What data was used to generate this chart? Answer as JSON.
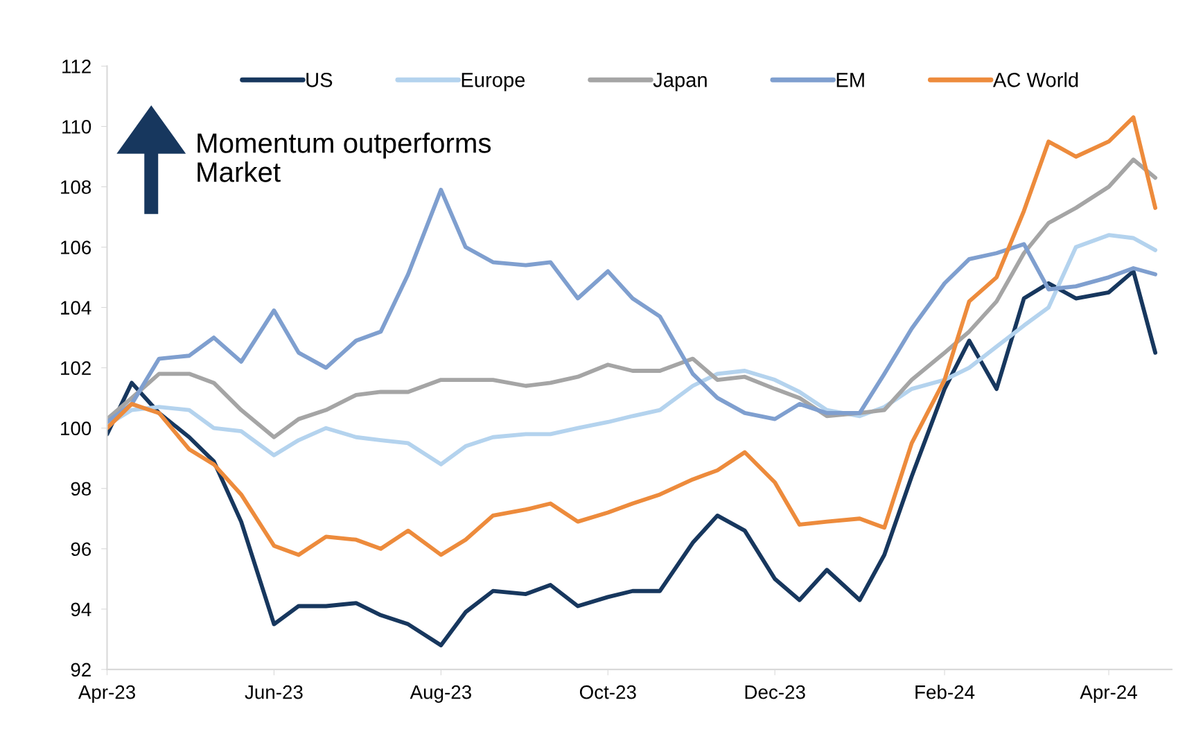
{
  "chart_data": {
    "type": "line",
    "x": [
      "2023-04-01",
      "2023-04-10",
      "2023-04-20",
      "2023-05-01",
      "2023-05-10",
      "2023-05-20",
      "2023-06-01",
      "2023-06-10",
      "2023-06-20",
      "2023-07-01",
      "2023-07-10",
      "2023-07-20",
      "2023-08-01",
      "2023-08-10",
      "2023-08-20",
      "2023-09-01",
      "2023-09-10",
      "2023-09-20",
      "2023-10-01",
      "2023-10-10",
      "2023-10-20",
      "2023-11-01",
      "2023-11-10",
      "2023-11-20",
      "2023-12-01",
      "2023-12-10",
      "2023-12-20",
      "2024-01-01",
      "2024-01-10",
      "2024-01-20",
      "2024-02-01",
      "2024-02-10",
      "2024-02-20",
      "2024-03-01",
      "2024-03-10",
      "2024-03-20",
      "2024-04-01",
      "2024-04-10",
      "2024-04-18"
    ],
    "series": [
      {
        "name": "US",
        "color": "#17375e",
        "values": [
          99.8,
          101.5,
          100.5,
          99.7,
          98.9,
          96.9,
          93.5,
          94.1,
          94.1,
          94.2,
          93.8,
          93.5,
          92.8,
          93.9,
          94.6,
          94.5,
          94.8,
          94.1,
          94.4,
          94.6,
          94.6,
          96.2,
          97.1,
          96.6,
          95.0,
          94.3,
          95.3,
          94.3,
          95.8,
          98.4,
          101.3,
          102.9,
          101.3,
          104.3,
          104.8,
          104.3,
          104.5,
          105.2,
          102.5
        ]
      },
      {
        "name": "Europe",
        "color": "#b4d3ee",
        "values": [
          100.1,
          100.6,
          100.7,
          100.6,
          100.0,
          99.9,
          99.1,
          99.6,
          100.0,
          99.7,
          99.6,
          99.5,
          98.8,
          99.4,
          99.7,
          99.8,
          99.8,
          100.0,
          100.2,
          100.4,
          100.6,
          101.4,
          101.8,
          101.9,
          101.6,
          101.2,
          100.6,
          100.4,
          100.7,
          101.3,
          101.6,
          102.0,
          102.7,
          103.4,
          104.0,
          106.0,
          106.4,
          106.3,
          105.9
        ]
      },
      {
        "name": "Japan",
        "color": "#a5a5a5",
        "values": [
          100.3,
          101.0,
          101.8,
          101.8,
          101.5,
          100.6,
          99.7,
          100.3,
          100.6,
          101.1,
          101.2,
          101.2,
          101.6,
          101.6,
          101.6,
          101.4,
          101.5,
          101.7,
          102.1,
          101.9,
          101.9,
          102.3,
          101.6,
          101.7,
          101.3,
          101.0,
          100.4,
          100.5,
          100.6,
          101.6,
          102.5,
          103.2,
          104.2,
          105.8,
          106.8,
          107.3,
          108.0,
          108.9,
          108.3
        ]
      },
      {
        "name": "EM",
        "color": "#7f9fcf",
        "values": [
          100.2,
          100.8,
          102.3,
          102.4,
          103.0,
          102.2,
          103.9,
          102.5,
          102.0,
          102.9,
          103.2,
          105.1,
          107.9,
          106.0,
          105.5,
          105.4,
          105.5,
          104.3,
          105.2,
          104.3,
          103.7,
          101.8,
          101.0,
          100.5,
          100.3,
          100.8,
          100.5,
          100.5,
          101.8,
          103.3,
          104.8,
          105.6,
          105.8,
          106.1,
          104.6,
          104.7,
          105.0,
          105.3,
          105.1
        ]
      },
      {
        "name": "AC World",
        "color": "#ed8b3c",
        "values": [
          100.0,
          100.8,
          100.5,
          99.3,
          98.8,
          97.8,
          96.1,
          95.8,
          96.4,
          96.3,
          96.0,
          96.6,
          95.8,
          96.3,
          97.1,
          97.3,
          97.5,
          96.9,
          97.2,
          97.5,
          97.8,
          98.3,
          98.6,
          99.2,
          98.2,
          96.8,
          96.9,
          97.0,
          96.7,
          99.5,
          101.6,
          104.2,
          105.0,
          107.2,
          109.5,
          109.0,
          109.5,
          110.3,
          107.3
        ]
      }
    ],
    "xlim": [
      "2023-04-01",
      "2024-04-24"
    ],
    "xticks": [
      {
        "value": "2023-04-01",
        "label": "Apr-23"
      },
      {
        "value": "2023-06-01",
        "label": "Jun-23"
      },
      {
        "value": "2023-08-01",
        "label": "Aug-23"
      },
      {
        "value": "2023-10-01",
        "label": "Oct-23"
      },
      {
        "value": "2023-12-01",
        "label": "Dec-23"
      },
      {
        "value": "2024-02-01",
        "label": "Feb-24"
      },
      {
        "value": "2024-04-01",
        "label": "Apr-24"
      }
    ],
    "ylim": [
      92,
      112
    ],
    "yticks": [
      92,
      94,
      96,
      98,
      100,
      102,
      104,
      106,
      108,
      110,
      112
    ],
    "annotations": [
      "Momentum outperforms\nMarket"
    ],
    "legend": "top",
    "grid": false,
    "line_style": "solid",
    "marker": "none"
  }
}
